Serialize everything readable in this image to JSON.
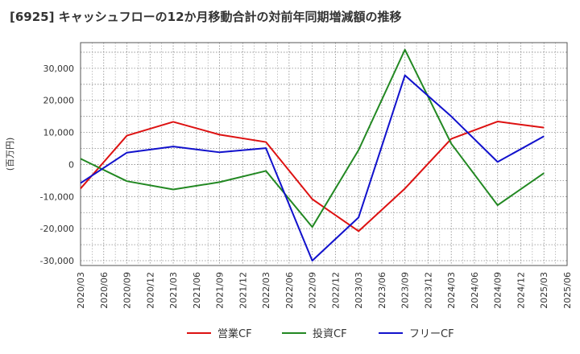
{
  "title": "[6925]  キャッシュフローの12か月移動合計の対前年同期増減額の推移",
  "chart_data": {
    "type": "line",
    "title": "[6925]  キャッシュフローの12か月移動合計の対前年同期増減額の推移",
    "xlabel": "",
    "ylabel": "(百万円)",
    "ylim": [
      -31500,
      38000
    ],
    "y_ticks": [
      -30000,
      -20000,
      -10000,
      0,
      10000,
      20000,
      30000
    ],
    "y_tick_labels": [
      "-30,000",
      "-20,000",
      "-10,000",
      "0",
      "10,000",
      "20,000",
      "30,000"
    ],
    "x_ticks": [
      "2020/03",
      "2020/06",
      "2020/09",
      "2020/12",
      "2021/03",
      "2021/06",
      "2021/09",
      "2021/12",
      "2022/03",
      "2022/06",
      "2022/09",
      "2022/12",
      "2023/03",
      "2023/06",
      "2023/09",
      "2023/12",
      "2024/03",
      "2024/06",
      "2024/09",
      "2024/12",
      "2025/03",
      "2025/06"
    ],
    "grid": true,
    "legend_position": "bottom",
    "series": [
      {
        "name": "営業CF",
        "color": "#dd1111",
        "points": [
          [
            "2020/03",
            -7500
          ],
          [
            "2020/09",
            9000
          ],
          [
            "2021/03",
            13300
          ],
          [
            "2021/09",
            9300
          ],
          [
            "2022/03",
            7000
          ],
          [
            "2022/09",
            -10800
          ],
          [
            "2023/03",
            -20800
          ],
          [
            "2023/09",
            -7500
          ],
          [
            "2024/03",
            8000
          ],
          [
            "2024/09",
            13400
          ],
          [
            "2025/03",
            11500
          ]
        ]
      },
      {
        "name": "投資CF",
        "color": "#228822",
        "points": [
          [
            "2020/03",
            1800
          ],
          [
            "2020/09",
            -5200
          ],
          [
            "2021/03",
            -7800
          ],
          [
            "2021/09",
            -5500
          ],
          [
            "2022/03",
            -2000
          ],
          [
            "2022/09",
            -19500
          ],
          [
            "2023/03",
            4500
          ],
          [
            "2023/09",
            35800
          ],
          [
            "2024/03",
            6500
          ],
          [
            "2024/09",
            -12700
          ],
          [
            "2025/03",
            -2700
          ]
        ]
      },
      {
        "name": "フリーCF",
        "color": "#1111cc",
        "points": [
          [
            "2020/03",
            -5800
          ],
          [
            "2020/09",
            3700
          ],
          [
            "2021/03",
            5600
          ],
          [
            "2021/09",
            3800
          ],
          [
            "2022/03",
            5100
          ],
          [
            "2022/09",
            -30000
          ],
          [
            "2023/03",
            -16500
          ],
          [
            "2023/09",
            27800
          ],
          [
            "2024/03",
            15000
          ],
          [
            "2024/09",
            800
          ],
          [
            "2025/03",
            8800
          ]
        ]
      }
    ]
  }
}
